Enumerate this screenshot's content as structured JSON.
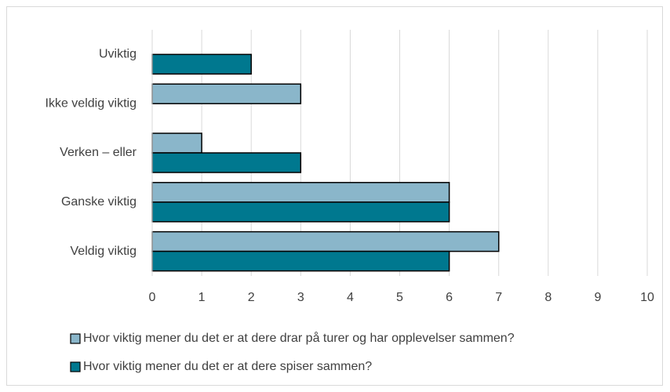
{
  "chart_data": {
    "type": "barh",
    "categories": [
      "Uviktig",
      "Ikke veldig viktig",
      "Verken – eller",
      "Ganske viktig",
      "Veldig viktig"
    ],
    "series": [
      {
        "name": "Hvor viktig mener du det er at dere drar på turer og har opplevelser sammen?",
        "color": "#8ab6ca",
        "values": [
          0,
          3,
          1,
          6,
          7
        ]
      },
      {
        "name": "Hvor viktig mener du det er at dere spiser sammen?",
        "color": "#00788f",
        "values": [
          2,
          0,
          3,
          6,
          6
        ]
      }
    ],
    "xlim": [
      0,
      10
    ],
    "xticks": [
      0,
      1,
      2,
      3,
      4,
      5,
      6,
      7,
      8,
      9,
      10
    ],
    "grid": true,
    "legend": "bottom"
  }
}
